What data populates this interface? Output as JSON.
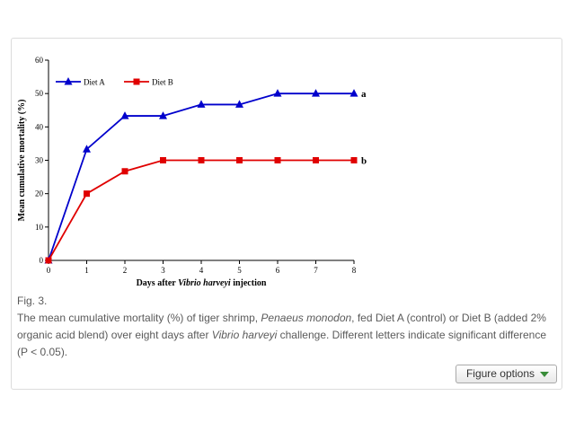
{
  "chart_data": {
    "type": "line",
    "title": "",
    "xlabel_parts": [
      "Days after ",
      "Vibrio harveyi",
      " injection"
    ],
    "ylabel": "Mean cumulative mortality (%)",
    "x": [
      0,
      1,
      2,
      3,
      4,
      5,
      6,
      7,
      8
    ],
    "xlim": [
      0,
      8
    ],
    "ylim": [
      0,
      60
    ],
    "xticks": [
      "0",
      "1",
      "2",
      "3",
      "4",
      "5",
      "6",
      "7",
      "8"
    ],
    "yticks": [
      "0",
      "10",
      "20",
      "30",
      "40",
      "50",
      "60"
    ],
    "grid": false,
    "legend_position": "top-left",
    "series": [
      {
        "name": "Diet A",
        "color": "#0000cc",
        "marker": "triangle",
        "values": [
          0,
          33.3,
          43.3,
          43.3,
          46.7,
          46.7,
          50,
          50,
          50
        ],
        "end_label": "a"
      },
      {
        "name": "Diet B",
        "color": "#e00000",
        "marker": "square",
        "values": [
          0,
          20,
          26.7,
          30,
          30,
          30,
          30,
          30,
          30
        ],
        "end_label": "b"
      }
    ]
  },
  "caption": {
    "label": "Fig. 3.",
    "parts": [
      {
        "text": "The mean cumulative mortality (%) of tiger shrimp, ",
        "italic": false
      },
      {
        "text": "Penaeus monodon",
        "italic": true
      },
      {
        "text": ", fed Diet A (control) or Diet B (added 2% organic acid blend) over eight days after ",
        "italic": false
      },
      {
        "text": "Vibrio harveyi",
        "italic": true
      },
      {
        "text": " challenge. Different letters indicate significant difference (P < 0.05).",
        "italic": false
      }
    ]
  },
  "figure_options": {
    "label": "Figure options",
    "icon": "triangle-down-icon",
    "icon_color": "#3a8d3a"
  }
}
